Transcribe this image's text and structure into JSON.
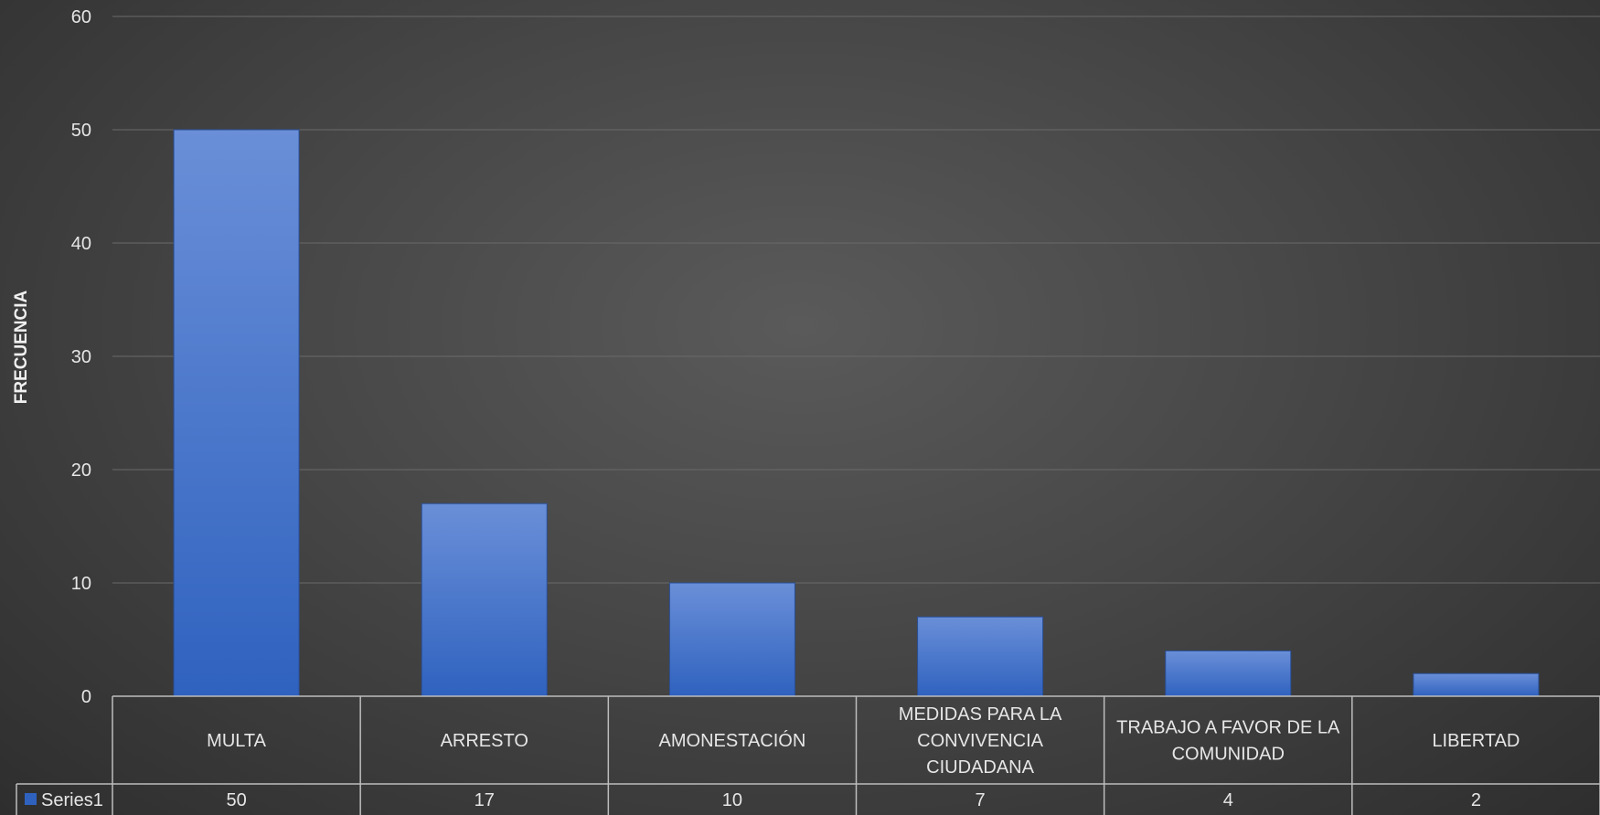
{
  "chart_data": {
    "type": "bar",
    "ylabel": "FRECUENCIA",
    "ylim": [
      0,
      60
    ],
    "yticks": [
      0,
      10,
      20,
      30,
      40,
      50,
      60
    ],
    "categories": [
      "MULTA",
      "ARRESTO",
      "AMONESTACIÓN",
      "MEDIDAS PARA LA CONVIVENCIA CIUDADANA",
      "TRABAJO A FAVOR DE LA COMUNIDAD",
      "LIBERTAD"
    ],
    "category_lines": [
      [
        "MULTA"
      ],
      [
        "ARRESTO"
      ],
      [
        "AMONESTACIÓN"
      ],
      [
        "MEDIDAS PARA LA",
        "CONVIVENCIA",
        "CIUDADANA"
      ],
      [
        "TRABAJO A FAVOR DE LA",
        "COMUNIDAD"
      ],
      [
        "LIBERTAD"
      ]
    ],
    "series": [
      {
        "name": "Series1",
        "values": [
          50,
          17,
          10,
          7,
          4,
          2
        ]
      }
    ],
    "grid": true,
    "data_table": true,
    "legend": "data-table",
    "colors": {
      "bar_top": "#6a8fd8",
      "bar_bottom": "#2f62bf",
      "grid": "#6a6a6a",
      "table_line": "#bdbdbd",
      "text": "#e6e6e6"
    }
  }
}
